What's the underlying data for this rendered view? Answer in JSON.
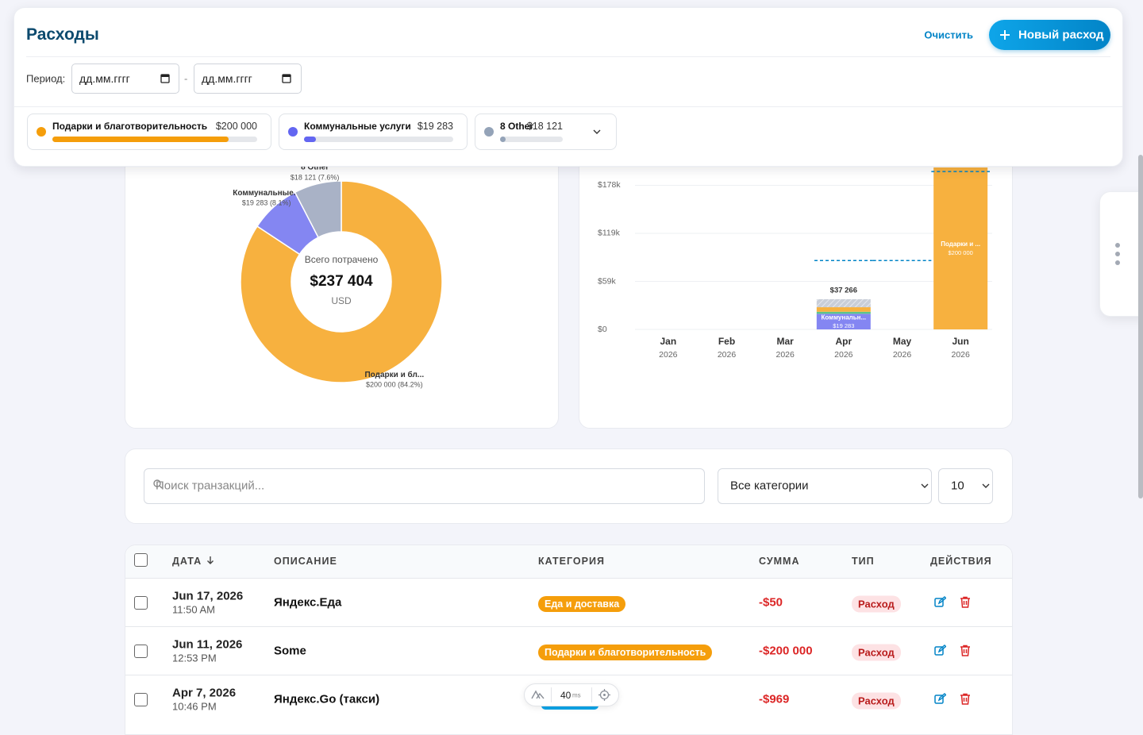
{
  "header": {
    "title": "Расходы",
    "clear": "Очистить",
    "new_expense": "Новый расход",
    "period_label": "Период:",
    "date_from": "дд.мм.гггг",
    "date_separator": "-",
    "date_to": "дд.мм.гггг"
  },
  "category_chips": [
    {
      "name": "Подарки и благотворительность",
      "amount": "$200 000",
      "color": "#f59e0b"
    },
    {
      "name": "Коммунальные услуги",
      "amount": "$19 283",
      "color": "#6366f1"
    },
    {
      "name": "8 Other",
      "amount": "$18 121",
      "color": "#94a3b8"
    }
  ],
  "chart_data": [
    {
      "type": "pie",
      "center_label": "Всего потрачено",
      "total": "$237 404",
      "currency": "USD",
      "categories": [
        "Подарки и бл...",
        "Коммунальные...",
        "8 Other"
      ],
      "values": [
        84.2,
        8.1,
        7.6
      ],
      "value_labels": [
        "$200 000 (84.2%)",
        "$19 283 (8.1%)",
        "$18 121 (7.6%)"
      ],
      "colors": [
        "#f7b13f",
        "#8486f2",
        "#a9b2c6"
      ]
    },
    {
      "type": "bar",
      "stacked": true,
      "categories": [
        "Jan",
        "Feb",
        "Mar",
        "Apr",
        "May",
        "Jun"
      ],
      "category_years": [
        "2026",
        "2026",
        "2026",
        "2026",
        "2026",
        "2026"
      ],
      "ylim": [
        0,
        250000
      ],
      "yticks": [
        {
          "value": 0,
          "label": "$0"
        },
        {
          "value": 59333,
          "label": "$59k"
        },
        {
          "value": 118667,
          "label": "$119k"
        },
        {
          "value": 178000,
          "label": "$178k"
        }
      ],
      "grid": true,
      "series": [
        {
          "color": "#8486f2",
          "values": [
            null,
            null,
            null,
            19283,
            null,
            null
          ],
          "labels": [
            null,
            null,
            null,
            "Коммунальн...",
            null,
            null
          ],
          "value_labels": [
            null,
            null,
            null,
            "$19 283",
            null,
            null
          ]
        },
        {
          "color": "#5bc58a",
          "values": [
            null,
            null,
            null,
            2500,
            null,
            null
          ]
        },
        {
          "color": "#f7b13f",
          "values": [
            null,
            null,
            null,
            5628,
            null,
            200000
          ],
          "labels": [
            null,
            null,
            null,
            null,
            null,
            "Подарки и ..."
          ],
          "value_labels": [
            null,
            null,
            null,
            null,
            null,
            "$200 000"
          ]
        },
        {
          "color": "#c9ced8",
          "hatched": true,
          "values": [
            null,
            null,
            null,
            9855,
            null,
            null
          ]
        }
      ],
      "totals": [
        null,
        null,
        null,
        37266,
        null,
        null
      ],
      "total_labels": [
        null,
        null,
        null,
        "$37 266",
        null,
        null
      ],
      "budget": [
        null,
        null,
        null,
        85000,
        85000,
        195000
      ],
      "budget_color": "#0284c7"
    }
  ],
  "filters": {
    "search_placeholder": "Поиск транзакций...",
    "category": "Все категории",
    "page_size": "10"
  },
  "table": {
    "columns": [
      "ДАТА",
      "ОПИСАНИЕ",
      "КАТЕГОРИЯ",
      "СУММА",
      "ТИП",
      "ДЕЙСТВИЯ"
    ],
    "rows": [
      {
        "date": "Jun 17, 2026",
        "time": "11:50 AM",
        "description": "Яндекс.Еда",
        "category": "Еда и доставка",
        "category_color": "#f59e0b",
        "amount": "-$50",
        "type": "Расход"
      },
      {
        "date": "Jun 11, 2026",
        "time": "12:53 PM",
        "description": "Some",
        "category": "Подарки и благотворительность",
        "category_color": "#f59e0b",
        "amount": "-$200 000",
        "type": "Расход"
      },
      {
        "date": "Apr 7, 2026",
        "time": "10:46 PM",
        "description": "Яндекс.Go (такси)",
        "category_color": "#0ea5e9",
        "amount": "-$969",
        "type": "Расход"
      }
    ]
  },
  "devtools": {
    "timing": "40",
    "unit": "ms"
  }
}
